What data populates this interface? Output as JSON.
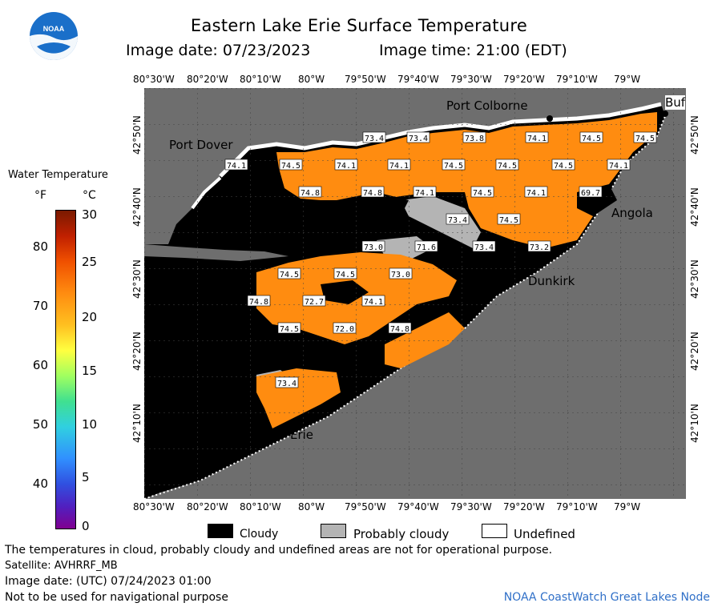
{
  "header": {
    "title": "Eastern Lake Erie Surface Temperature",
    "image_date": "Image date: 07/23/2023",
    "image_time": "Image time: 21:00 (EDT)",
    "logo_text": "NOAA"
  },
  "colorbar": {
    "title": "Water Temperature",
    "unit_f": "°F",
    "unit_c": "°C",
    "f_ticks": [
      "80",
      "70",
      "60",
      "50",
      "40"
    ],
    "c_ticks": [
      "30",
      "25",
      "20",
      "15",
      "10",
      "5",
      "0"
    ]
  },
  "axes": {
    "lon_ticks": [
      "80°30'W",
      "80°20'W",
      "80°10'W",
      "80°W",
      "79°50'W",
      "79°40'W",
      "79°30'W",
      "79°20'W",
      "79°10'W",
      "79°W"
    ],
    "lat_ticks": [
      "42°50'N",
      "42°40'N",
      "42°30'N",
      "42°20'N",
      "42°10'N"
    ]
  },
  "cities": {
    "port_colborne": "Port Colborne",
    "port_dover": "Port Dover",
    "angola": "Angola",
    "dunkirk": "Dunkirk",
    "erie": "Erie",
    "buffalo": "Buf"
  },
  "temperature_labels": [
    "73.4",
    "73.4",
    "73.8",
    "74.1",
    "74.5",
    "74.5",
    "74.1",
    "74.5",
    "74.1",
    "74.1",
    "74.5",
    "74.5",
    "74.5",
    "74.1",
    "74.8",
    "74.8",
    "74.1",
    "74.5",
    "74.1",
    "69.7",
    "73.4",
    "74.5",
    "73.0",
    "71.6",
    "73.4",
    "73.2",
    "74.5",
    "74.5",
    "73.0",
    "74.8",
    "72.7",
    "74.1",
    "74.5",
    "72.0",
    "74.8",
    "73.4"
  ],
  "legend": {
    "cloudy": "Cloudy",
    "probably_cloudy": "Probably cloudy",
    "undefined": "Undefined"
  },
  "footer": {
    "disclaimer": "The temperatures in cloud, probably cloudy and undefined areas are not for operational purpose.",
    "satellite": "Satellite: AVHRRF_MB",
    "utc_date": "Image date: (UTC) 07/24/2023  01:00",
    "navigation": "Not to be used for navigational purpose",
    "node": "NOAA CoastWatch Great Lakes Node"
  },
  "colors": {
    "land": "#6e6e6e",
    "cloud": "#000000",
    "probably_cloudy": "#b4b4b4",
    "undefined": "#ffffff",
    "water_warm": "#ff8c10",
    "noaa_blue": "#1a6fc9"
  }
}
